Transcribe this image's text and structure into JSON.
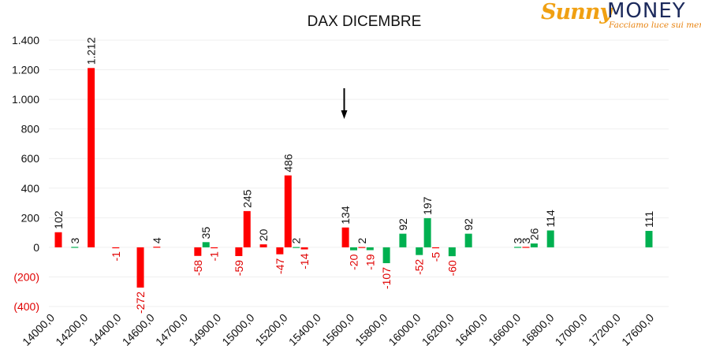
{
  "brand": {
    "name_part1": "Sunny",
    "name_part2": "MONEY",
    "tagline": "Facciamo luce sui mercati"
  },
  "colors": {
    "positive_before_marker": "#ff0000",
    "positive_after_marker": "#00b050",
    "negative_label": "#e00000",
    "label_positive": "#111111"
  },
  "chart_data": {
    "type": "bar",
    "title": "DAX DICEMBRE",
    "xlabel": "",
    "ylabel": "",
    "ylim": [
      -400,
      1400
    ],
    "yticks": [
      {
        "value": 1400,
        "label": "1.400"
      },
      {
        "value": 1200,
        "label": "1.200"
      },
      {
        "value": 1000,
        "label": "1.000"
      },
      {
        "value": 800,
        "label": "800"
      },
      {
        "value": 600,
        "label": "600"
      },
      {
        "value": 400,
        "label": "400"
      },
      {
        "value": 200,
        "label": "200"
      },
      {
        "value": 0,
        "label": "0"
      },
      {
        "value": -200,
        "label": "(200)"
      },
      {
        "value": -400,
        "label": "(400)"
      }
    ],
    "grid": true,
    "x_tick_labels": [
      "14000,0",
      "14200,0",
      "14400,0",
      "14600,0",
      "14700,0",
      "14900,0",
      "15000,0",
      "15200,0",
      "15400,0",
      "15600,0",
      "15800,0",
      "16000,0",
      "16200,0",
      "16400,0",
      "16600,0",
      "16800,0",
      "17000,0",
      "17200,0",
      "17600,0"
    ],
    "marker": {
      "type": "arrow-down",
      "near_strike": 15800
    },
    "series": [
      {
        "color": "#ff0000",
        "points": [
          {
            "strike": 14000,
            "value": 102,
            "label": "102"
          },
          {
            "strike": 14600,
            "value": 4,
            "label": "4"
          },
          {
            "strike": 14200,
            "value": 1212,
            "label": "1.212"
          },
          {
            "strike": 14500,
            "value": -272,
            "label": "-272"
          },
          {
            "strike": 14850,
            "value": -58,
            "label": "-58"
          },
          {
            "strike": 14950,
            "value": -1,
            "label": "-1"
          },
          {
            "strike": 15100,
            "value": -59,
            "label": "-59"
          },
          {
            "strike": 15150,
            "value": 245,
            "label": "245"
          },
          {
            "strike": 15250,
            "value": 20,
            "label": "20"
          },
          {
            "strike": 15350,
            "value": -47,
            "label": "-47"
          },
          {
            "strike": 15400,
            "value": 486,
            "label": "486"
          },
          {
            "strike": 15500,
            "value": -14,
            "label": "-14"
          },
          {
            "strike": 15750,
            "value": 134,
            "label": "134"
          },
          {
            "strike": 15850,
            "value": 2,
            "label": "2"
          },
          {
            "strike": 16300,
            "value": -5,
            "label": "-5"
          },
          {
            "strike": 16850,
            "value": 3,
            "label": "3"
          },
          {
            "strike": 14350,
            "value": -1,
            "label": "-1"
          }
        ]
      },
      {
        "color": "#00b050",
        "points": [
          {
            "strike": 14100,
            "value": 3,
            "label": "3"
          },
          {
            "strike": 14900,
            "value": 35,
            "label": "35"
          },
          {
            "strike": 15450,
            "value": 2,
            "label": "2"
          },
          {
            "strike": 15800,
            "value": -20,
            "label": "-20"
          },
          {
            "strike": 15900,
            "value": -19,
            "label": "-19"
          },
          {
            "strike": 16000,
            "value": -107,
            "label": "-107"
          },
          {
            "strike": 16100,
            "value": 92,
            "label": "92"
          },
          {
            "strike": 16200,
            "value": -52,
            "label": "-52"
          },
          {
            "strike": 16250,
            "value": 197,
            "label": "197"
          },
          {
            "strike": 16400,
            "value": -60,
            "label": "-60"
          },
          {
            "strike": 16500,
            "value": 92,
            "label": "92"
          },
          {
            "strike": 16800,
            "value": 3,
            "label": "3"
          },
          {
            "strike": 16900,
            "value": 26,
            "label": "26"
          },
          {
            "strike": 17000,
            "value": 114,
            "label": "114"
          },
          {
            "strike": 17600,
            "value": 111,
            "label": "111"
          }
        ]
      }
    ]
  }
}
